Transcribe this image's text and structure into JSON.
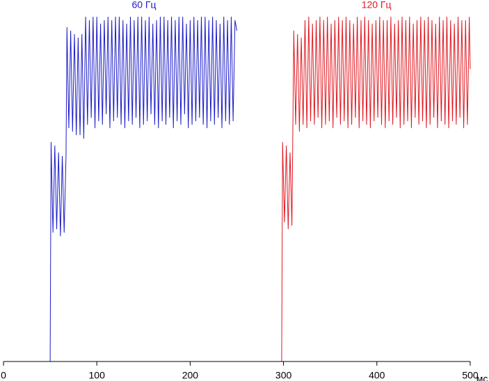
{
  "chart_data": {
    "type": "line",
    "xlim": [
      0,
      500
    ],
    "xticks": [
      0,
      100,
      200,
      300,
      400,
      500
    ],
    "ylim": [
      0,
      100
    ],
    "x_label": "мс",
    "series": [
      {
        "name": "60 Гц",
        "color": "#1c1cc8",
        "x": [
          0,
          50,
          51,
          53,
          55,
          57,
          59,
          61,
          63,
          65,
          67,
          68,
          70,
          72,
          74,
          76,
          78,
          80,
          82,
          84,
          86,
          88,
          90,
          92,
          94,
          96,
          98,
          100,
          102,
          104,
          106,
          108,
          110,
          112,
          114,
          116,
          118,
          120,
          122,
          124,
          126,
          128,
          130,
          132,
          134,
          136,
          138,
          140,
          142,
          144,
          146,
          148,
          150,
          152,
          154,
          156,
          158,
          160,
          162,
          164,
          166,
          168,
          170,
          172,
          174,
          176,
          178,
          180,
          182,
          184,
          186,
          188,
          190,
          192,
          194,
          196,
          198,
          200,
          202,
          204,
          206,
          208,
          210,
          212,
          214,
          216,
          218,
          220,
          222,
          224,
          226,
          228,
          230,
          232,
          234,
          236,
          238,
          240,
          242,
          244,
          246,
          248,
          250
        ],
        "values": [
          0,
          0,
          63,
          37,
          62,
          38,
          60,
          36,
          59,
          37,
          59,
          96,
          67,
          95,
          66,
          94,
          65,
          93,
          65,
          94,
          64,
          99,
          68,
          98,
          70,
          99,
          67,
          99,
          69,
          97,
          68,
          98,
          71,
          99,
          67,
          98,
          69,
          99,
          70,
          99,
          68,
          98,
          67,
          97,
          69,
          99,
          68,
          98,
          70,
          99,
          67,
          99,
          68,
          98,
          69,
          99,
          71,
          97,
          68,
          98,
          67,
          99,
          69,
          99,
          68,
          98,
          70,
          99,
          67,
          98,
          69,
          99,
          68,
          99,
          71,
          97,
          67,
          98,
          68,
          99,
          69,
          98,
          70,
          99,
          68,
          99,
          67,
          98,
          69,
          99,
          68,
          98,
          70,
          97,
          67,
          99,
          69,
          98,
          68,
          99,
          69,
          98,
          95
        ]
      },
      {
        "name": "120 Гц",
        "color": "#e01820",
        "x": [
          250,
          298,
          299,
          301,
          303,
          305,
          307,
          309,
          311,
          313,
          315,
          317,
          319,
          321,
          323,
          325,
          327,
          329,
          331,
          333,
          335,
          337,
          339,
          341,
          343,
          345,
          347,
          349,
          351,
          353,
          355,
          357,
          359,
          361,
          363,
          365,
          367,
          369,
          371,
          373,
          375,
          377,
          379,
          381,
          383,
          385,
          387,
          389,
          391,
          393,
          395,
          397,
          399,
          401,
          403,
          405,
          407,
          409,
          411,
          413,
          415,
          417,
          419,
          421,
          423,
          425,
          427,
          429,
          431,
          433,
          435,
          437,
          439,
          441,
          443,
          445,
          447,
          449,
          451,
          453,
          455,
          457,
          459,
          461,
          463,
          465,
          467,
          469,
          471,
          473,
          475,
          477,
          479,
          481,
          483,
          485,
          487,
          489,
          491,
          493,
          495,
          497,
          499,
          500
        ],
        "values": [
          0,
          0,
          63,
          40,
          62,
          38,
          60,
          39,
          95,
          68,
          94,
          66,
          93,
          68,
          98,
          67,
          99,
          69,
          97,
          68,
          98,
          70,
          99,
          67,
          98,
          68,
          99,
          69,
          97,
          67,
          98,
          70,
          99,
          68,
          98,
          69,
          99,
          67,
          98,
          68,
          97,
          70,
          99,
          67,
          98,
          69,
          99,
          68,
          98,
          67,
          97,
          69,
          98,
          70,
          99,
          68,
          98,
          67,
          98,
          69,
          99,
          68,
          97,
          70,
          98,
          67,
          99,
          68,
          98,
          69,
          99,
          67,
          97,
          70,
          98,
          68,
          99,
          69,
          98,
          67,
          99,
          68,
          98,
          70,
          97,
          67,
          99,
          69,
          98,
          68,
          99,
          67,
          98,
          69,
          97,
          68,
          99,
          70,
          98,
          67,
          98,
          68,
          99,
          84
        ]
      }
    ]
  }
}
